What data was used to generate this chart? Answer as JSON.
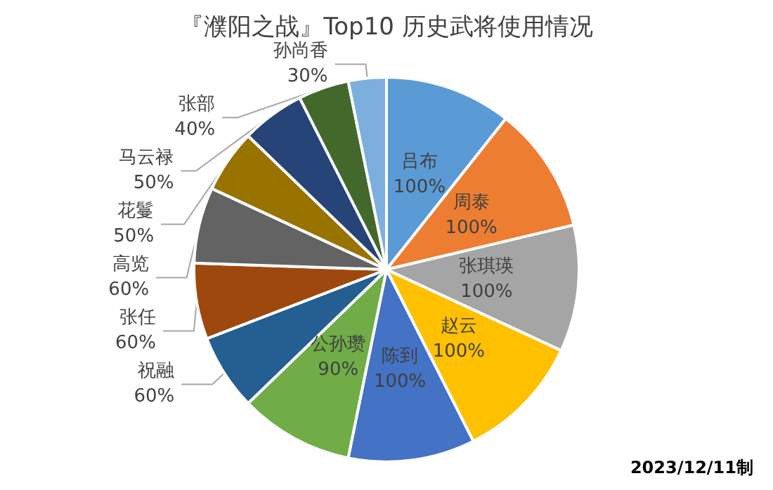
{
  "chart_data": {
    "type": "pie",
    "title": "『濮阳之战』Top10 历史武将使用情况",
    "categories": [
      "吕布",
      "周泰",
      "张琪瑛",
      "赵云",
      "陈到",
      "公孙瓒",
      "祝融",
      "张任",
      "高览",
      "花鬘",
      "马云禄",
      "张部",
      "孙尚香"
    ],
    "values": [
      100,
      100,
      100,
      100,
      100,
      90,
      60,
      60,
      60,
      50,
      50,
      40,
      30
    ],
    "value_labels": [
      "100%",
      "100%",
      "100%",
      "100%",
      "100%",
      "90%",
      "60%",
      "60%",
      "60%",
      "50%",
      "50%",
      "40%",
      "30%"
    ],
    "colors": [
      "#5b9bd5",
      "#ed7d31",
      "#a5a5a5",
      "#ffc000",
      "#4472c4",
      "#70ad47",
      "#255e91",
      "#9e480e",
      "#636363",
      "#997300",
      "#264478",
      "#43682b",
      "#7cafdd"
    ],
    "annotations": [
      "2023/12/11制"
    ],
    "legend": false
  }
}
